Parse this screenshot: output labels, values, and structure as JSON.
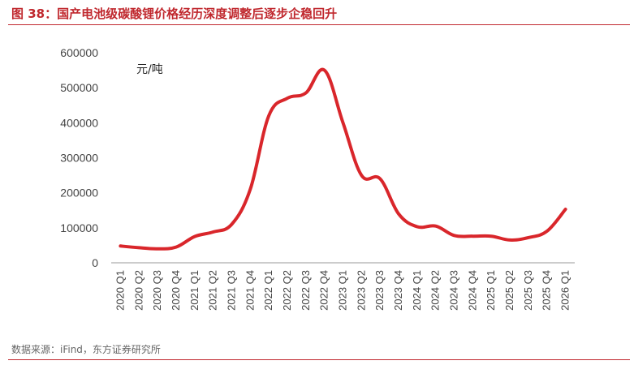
{
  "title": "图 38：国产电池级碳酸锂价格经历深度调整后逐步企稳回升",
  "source": "数据来源：iFind，东方证券研究所",
  "colors": {
    "accent": "#c0282e",
    "line": "#d9262b",
    "axis": "#888888"
  },
  "chart_data": {
    "type": "line",
    "unit_label": "元/吨",
    "categories": [
      "2020 Q1",
      "2020 Q2",
      "2020 Q3",
      "2020 Q4",
      "2021 Q1",
      "2021 Q2",
      "2021 Q3",
      "2021 Q4",
      "2022 Q1",
      "2022 Q2",
      "2022 Q3",
      "2022 Q4",
      "2023 Q1",
      "2023 Q2",
      "2023 Q3",
      "2023 Q4",
      "2024 Q1",
      "2024 Q2",
      "2024 Q3",
      "2024 Q4",
      "2025 Q1",
      "2025 Q2",
      "2025 Q3",
      "2025 Q4",
      "2026 Q1"
    ],
    "series": [
      {
        "values": [
          48000,
          43000,
          40000,
          45000,
          75000,
          88000,
          110000,
          210000,
          420000,
          470000,
          485000,
          550000,
          400000,
          250000,
          240000,
          140000,
          103000,
          105000,
          78000,
          76000,
          76000,
          65000,
          72000,
          90000,
          153000
        ]
      }
    ],
    "yticks": [
      "0",
      "100000",
      "200000",
      "300000",
      "400000",
      "500000",
      "600000"
    ],
    "ylim": [
      0,
      600000
    ],
    "grid": false,
    "legend": "none"
  }
}
